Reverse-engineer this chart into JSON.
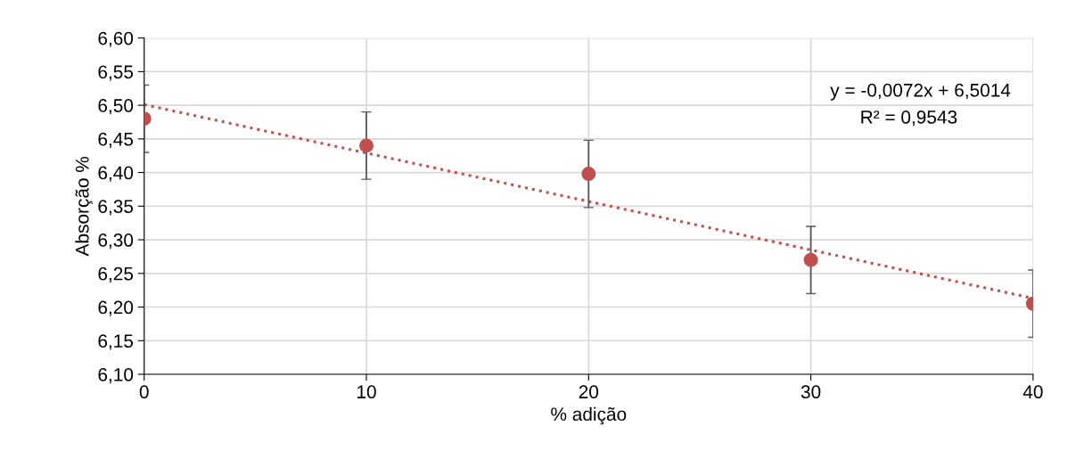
{
  "chart_data": {
    "type": "scatter",
    "xlabel": "% adição",
    "ylabel": "Absorção %",
    "xlim": [
      0,
      40
    ],
    "xticks": [
      0,
      10,
      20,
      30,
      40
    ],
    "ylim": [
      6.1,
      6.6
    ],
    "yticks": [
      {
        "value": 6.1,
        "label": "6,10"
      },
      {
        "value": 6.15,
        "label": "6,15"
      },
      {
        "value": 6.2,
        "label": "6,20"
      },
      {
        "value": 6.25,
        "label": "6,25"
      },
      {
        "value": 6.3,
        "label": "6,30"
      },
      {
        "value": 6.35,
        "label": "6,35"
      },
      {
        "value": 6.4,
        "label": "6,40"
      },
      {
        "value": 6.45,
        "label": "6,45"
      },
      {
        "value": 6.5,
        "label": "6,50"
      },
      {
        "value": 6.55,
        "label": "6,55"
      },
      {
        "value": 6.6,
        "label": "6,60"
      }
    ],
    "grid": true,
    "legend": false,
    "series": [
      {
        "color": "#c0504d",
        "marker": "circle",
        "x": [
          0,
          10,
          20,
          30,
          40
        ],
        "values": [
          6.48,
          6.44,
          6.398,
          6.27,
          6.205
        ],
        "errors": [
          0.05,
          0.05,
          0.05,
          0.05,
          0.05
        ]
      },
      {
        "type": "line",
        "color": "#c0504d",
        "line_style": "dotted",
        "marker": "none",
        "x": [
          0,
          40
        ],
        "values": [
          6.501,
          6.213
        ]
      }
    ],
    "annotations": [
      "y = -0,0072x + 6,5014",
      "R² = 0,9543"
    ]
  }
}
